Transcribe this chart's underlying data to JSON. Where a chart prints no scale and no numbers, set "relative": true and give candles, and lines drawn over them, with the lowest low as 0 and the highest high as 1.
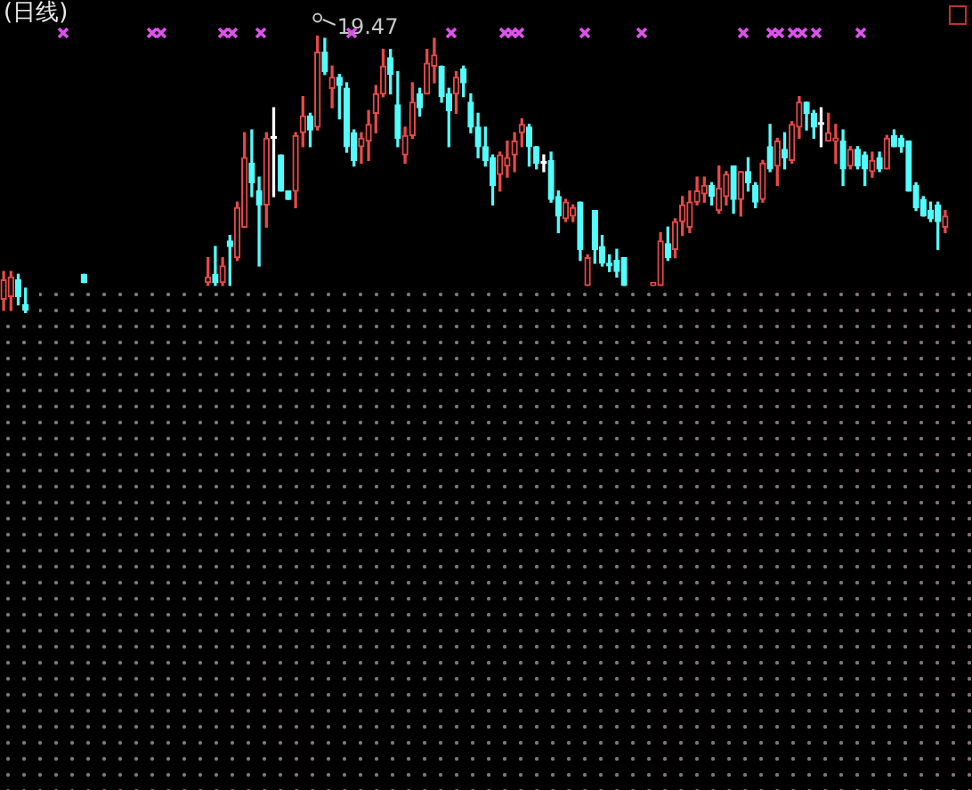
{
  "chart_data": {
    "type": "candlestick",
    "title": "(日线)",
    "relative": true,
    "categories": [
      null,
      null,
      null,
      null,
      null,
      null,
      null,
      null,
      null,
      null,
      null,
      null,
      null,
      null,
      null,
      null,
      null,
      null,
      null,
      null,
      null,
      null,
      null,
      null,
      null,
      null,
      null,
      null,
      null,
      null,
      null,
      null,
      null,
      null,
      null,
      null,
      null,
      null,
      null,
      null,
      null,
      null,
      null,
      null,
      null,
      null,
      null,
      null,
      null,
      null,
      null,
      null,
      null,
      null,
      null,
      null,
      null,
      null,
      null,
      null,
      null,
      null,
      null,
      null,
      null,
      null,
      null,
      null,
      null,
      null,
      null,
      null,
      null,
      null,
      null,
      null,
      null,
      null,
      null,
      null,
      null,
      null,
      null,
      null,
      null,
      null,
      null,
      null,
      null,
      null,
      null,
      null,
      null,
      null,
      null,
      null,
      null,
      null,
      null,
      null,
      null,
      null,
      null,
      null,
      null,
      null,
      null,
      null,
      null,
      null,
      null,
      null,
      null,
      null,
      null,
      null,
      null,
      null,
      null,
      null,
      null,
      null,
      null,
      null,
      null,
      null,
      null,
      null,
      null,
      null
    ],
    "ohlc": [
      [
        0.05,
        0.15,
        0.01,
        0.12
      ],
      [
        0.06,
        0.15,
        0.01,
        0.13
      ],
      [
        0.12,
        0.14,
        0.03,
        0.06
      ],
      [
        0.03,
        0.09,
        0,
        0.01
      ],
      null,
      null,
      null,
      null,
      null,
      null,
      null,
      [
        0.14,
        0.14,
        0.11,
        0.11
      ],
      null,
      null,
      null,
      null,
      null,
      null,
      null,
      null,
      null,
      null,
      null,
      null,
      null,
      null,
      null,
      null,
      [
        0.11,
        0.2,
        0.1,
        0.13
      ],
      [
        0.14,
        0.24,
        0.1,
        0.11
      ],
      [
        0.11,
        0.2,
        0.1,
        0.17
      ],
      [
        0.26,
        0.28,
        0.1,
        0.24
      ],
      [
        0.2,
        0.4,
        0.19,
        0.38
      ],
      [
        0.31,
        0.65,
        0.31,
        0.56
      ],
      [
        0.54,
        0.66,
        0.42,
        0.47
      ],
      [
        0.44,
        0.49,
        0.17,
        0.39
      ],
      [
        0.39,
        0.65,
        0.31,
        0.63
      ],
      [
        0.63,
        0.74,
        0.42,
        0.63
      ],
      [
        0.57,
        0.57,
        0.44,
        0.44
      ],
      [
        0.44,
        0.44,
        0.41,
        0.41
      ],
      [
        0.44,
        0.65,
        0.38,
        0.64
      ],
      [
        0.65,
        0.78,
        0.6,
        0.71
      ],
      [
        0.71,
        0.72,
        0.6,
        0.66
      ],
      [
        0.67,
        1,
        0.66,
        0.94
      ],
      [
        0.94,
        0.99,
        0.86,
        0.87
      ],
      [
        0.81,
        0.89,
        0.74,
        0.85
      ],
      [
        0.85,
        0.86,
        0.7,
        0.82
      ],
      [
        0.81,
        0.83,
        0.58,
        0.6
      ],
      [
        0.65,
        0.66,
        0.53,
        0.55
      ],
      [
        0.6,
        0.65,
        0.54,
        0.63
      ],
      [
        0.62,
        0.73,
        0.55,
        0.68
      ],
      [
        0.72,
        0.82,
        0.65,
        0.79
      ],
      [
        0.79,
        0.95,
        0.78,
        0.89
      ],
      [
        0.92,
        0.95,
        0.79,
        0.86
      ],
      [
        0.75,
        0.87,
        0.6,
        0.63
      ],
      [
        0.57,
        0.67,
        0.54,
        0.64
      ],
      [
        0.64,
        0.83,
        0.63,
        0.76
      ],
      [
        0.79,
        0.81,
        0.71,
        0.74
      ],
      [
        0.79,
        0.95,
        0.79,
        0.9
      ],
      [
        0.89,
        0.99,
        0.83,
        0.93
      ],
      [
        0.89,
        0.89,
        0.76,
        0.78
      ],
      [
        0.79,
        0.81,
        0.6,
        0.73
      ],
      [
        0.79,
        0.87,
        0.72,
        0.85
      ],
      [
        0.88,
        0.89,
        0.78,
        0.83
      ],
      [
        0.76,
        0.79,
        0.65,
        0.67
      ],
      [
        0.67,
        0.72,
        0.56,
        0.6
      ],
      [
        0.6,
        0.67,
        0.53,
        0.55
      ],
      [
        0.56,
        0.57,
        0.39,
        0.46
      ],
      [
        0.5,
        0.58,
        0.44,
        0.57
      ],
      [
        0.53,
        0.62,
        0.49,
        0.56
      ],
      [
        0.57,
        0.65,
        0.51,
        0.62
      ],
      [
        0.65,
        0.7,
        0.6,
        0.68
      ],
      [
        0.67,
        0.68,
        0.53,
        0.6
      ],
      [
        0.6,
        0.6,
        0.52,
        0.54
      ],
      [
        0.54,
        0.57,
        0.51,
        0.54
      ],
      [
        0.55,
        0.58,
        0.4,
        0.41
      ],
      [
        0.42,
        0.44,
        0.29,
        0.35
      ],
      [
        0.34,
        0.41,
        0.33,
        0.4
      ],
      [
        0.35,
        0.39,
        0.33,
        0.38
      ],
      [
        0.4,
        0.4,
        0.19,
        0.23
      ],
      [
        0.1,
        0.21,
        0.1,
        0.2
      ],
      [
        0.37,
        0.37,
        0.18,
        0.23
      ],
      [
        0.24,
        0.28,
        0.17,
        0.18
      ],
      [
        0.18,
        0.21,
        0.15,
        0.17
      ],
      [
        0.19,
        0.23,
        0.13,
        0.15
      ],
      [
        0.2,
        0.2,
        0.1,
        0.1
      ],
      null,
      null,
      null,
      [
        0.1,
        0.11,
        0.1,
        0.11
      ],
      [
        0.1,
        0.29,
        0.1,
        0.26
      ],
      [
        0.25,
        0.31,
        0.19,
        0.2
      ],
      [
        0.23,
        0.34,
        0.2,
        0.33
      ],
      [
        0.33,
        0.42,
        0.28,
        0.39
      ],
      [
        0.31,
        0.44,
        0.29,
        0.4
      ],
      [
        0.4,
        0.49,
        0.39,
        0.44
      ],
      [
        0.43,
        0.49,
        0.4,
        0.46
      ],
      [
        0.46,
        0.47,
        0.39,
        0.42
      ],
      [
        0.37,
        0.53,
        0.36,
        0.45
      ],
      [
        0.42,
        0.51,
        0.39,
        0.5
      ],
      [
        0.53,
        0.53,
        0.36,
        0.41
      ],
      [
        0.41,
        0.51,
        0.35,
        0.51
      ],
      [
        0.51,
        0.56,
        0.44,
        0.47
      ],
      [
        0.46,
        0.47,
        0.38,
        0.4
      ],
      [
        0.41,
        0.55,
        0.4,
        0.54
      ],
      [
        0.6,
        0.68,
        0.51,
        0.52
      ],
      [
        0.53,
        0.63,
        0.46,
        0.62
      ],
      [
        0.59,
        0.65,
        0.52,
        0.56
      ],
      [
        0.55,
        0.69,
        0.54,
        0.68
      ],
      [
        0.67,
        0.78,
        0.63,
        0.76
      ],
      [
        0.76,
        0.76,
        0.66,
        0.72
      ],
      [
        0.72,
        0.73,
        0.63,
        0.67
      ],
      [
        0.68,
        0.74,
        0.6,
        0.68
      ],
      [
        0.62,
        0.72,
        0.62,
        0.65
      ],
      [
        0.62,
        0.68,
        0.54,
        0.63
      ],
      [
        0.62,
        0.66,
        0.46,
        0.52
      ],
      [
        0.53,
        0.6,
        0.52,
        0.59
      ],
      [
        0.59,
        0.6,
        0.52,
        0.53
      ],
      [
        0.57,
        0.58,
        0.46,
        0.52
      ],
      [
        0.51,
        0.58,
        0.49,
        0.55
      ],
      [
        0.56,
        0.58,
        0.51,
        0.52
      ],
      [
        0.52,
        0.64,
        0.52,
        0.63
      ],
      [
        0.64,
        0.66,
        0.6,
        0.6
      ],
      [
        0.63,
        0.64,
        0.58,
        0.6
      ],
      [
        0.62,
        0.62,
        0.44,
        0.44
      ],
      [
        0.46,
        0.47,
        0.37,
        0.38
      ],
      [
        0.41,
        0.42,
        0.35,
        0.35
      ],
      [
        0.37,
        0.4,
        0.33,
        0.34
      ],
      [
        0.39,
        0.4,
        0.23,
        0.33
      ],
      [
        0.31,
        0.37,
        0.29,
        0.35
      ]
    ],
    "colors": [
      "#e84848",
      "#e84848",
      "#54fcfc",
      "#54fcfc",
      null,
      null,
      null,
      null,
      null,
      null,
      null,
      "#54fcfc",
      null,
      null,
      null,
      null,
      null,
      null,
      null,
      null,
      null,
      null,
      null,
      null,
      null,
      null,
      null,
      null,
      "#e84848",
      "#54fcfc",
      "#e84848",
      "#54fcfc",
      "#e84848",
      "#e84848",
      "#54fcfc",
      "#54fcfc",
      "#e84848",
      "#ffffff",
      "#54fcfc",
      "#54fcfc",
      "#e84848",
      "#e84848",
      "#54fcfc",
      "#e84848",
      "#54fcfc",
      "#e84848",
      "#54fcfc",
      "#54fcfc",
      "#54fcfc",
      "#e84848",
      "#e84848",
      "#e84848",
      "#e84848",
      "#54fcfc",
      "#54fcfc",
      "#e84848",
      "#e84848",
      "#54fcfc",
      "#e84848",
      "#e84848",
      "#54fcfc",
      "#54fcfc",
      "#e84848",
      "#54fcfc",
      "#54fcfc",
      "#54fcfc",
      "#54fcfc",
      "#54fcfc",
      "#e84848",
      "#e84848",
      "#e84848",
      "#e84848",
      "#54fcfc",
      "#54fcfc",
      "#ffffff",
      "#54fcfc",
      "#54fcfc",
      "#e84848",
      "#e84848",
      "#54fcfc",
      "#e84848",
      "#54fcfc",
      "#54fcfc",
      "#54fcfc",
      "#54fcfc",
      "#54fcfc",
      null,
      null,
      null,
      "#e84848",
      "#e84848",
      "#54fcfc",
      "#e84848",
      "#e84848",
      "#e84848",
      "#e84848",
      "#e84848",
      "#54fcfc",
      "#e84848",
      "#e84848",
      "#54fcfc",
      "#e84848",
      "#54fcfc",
      "#54fcfc",
      "#e84848",
      "#54fcfc",
      "#e84848",
      "#54fcfc",
      "#e84848",
      "#e84848",
      "#54fcfc",
      "#54fcfc",
      "#ffffff",
      "#e84848",
      "#e84848",
      "#54fcfc",
      "#e84848",
      "#54fcfc",
      "#54fcfc",
      "#e84848",
      "#54fcfc",
      "#e84848",
      "#54fcfc",
      "#54fcfc",
      "#54fcfc",
      "#54fcfc",
      "#54fcfc",
      "#54fcfc",
      "#54fcfc",
      "#e84848"
    ],
    "annotations": [
      "19.47"
    ]
  }
}
